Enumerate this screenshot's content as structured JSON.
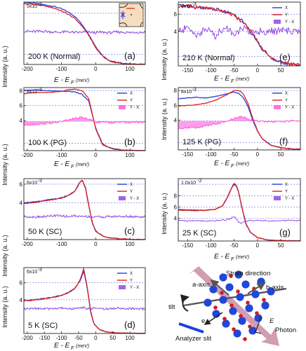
{
  "figure": {
    "ylabel": "Intensity (a. u.)",
    "xlabel_main": "E - E",
    "xlabel_sub": "F",
    "xlabel_unit": "(meV)"
  },
  "colors": {
    "X": "#1f3fe0",
    "Y": "#e01f1f",
    "Y_minus_X_pink": "#ff4fd8",
    "Y_minus_X_purple": "#8a3ee0",
    "ref_line": "#6a6ae0"
  },
  "chart_data": [
    {
      "id": "a",
      "panel_label": "(a)",
      "condition": "200 K (Normal)",
      "type": "line",
      "xlim": [
        -210,
        145
      ],
      "ylim": [
        0,
        5.6
      ],
      "xticks": [
        -200,
        -100,
        0,
        100
      ],
      "yticks": [],
      "multiplier": "5x10",
      "multiplier_exp": "-3",
      "legend": null,
      "inset": true,
      "ref_lines": [
        0.9,
        2.9,
        4.6
      ],
      "diff_fill": false,
      "x": [
        -210,
        -180,
        -150,
        -120,
        -100,
        -80,
        -60,
        -40,
        -20,
        0,
        20,
        40,
        60,
        80,
        100,
        120,
        145
      ],
      "series": [
        {
          "key": "X",
          "values": [
            5.6,
            5.5,
            5.35,
            5.2,
            5.0,
            4.7,
            4.3,
            3.6,
            2.7,
            1.6,
            0.8,
            0.35,
            0.2,
            0.1,
            0.05,
            0.02,
            0.0
          ]
        },
        {
          "key": "Y",
          "values": [
            5.45,
            5.4,
            5.25,
            5.05,
            4.8,
            4.5,
            4.1,
            3.45,
            2.6,
            1.5,
            0.75,
            0.3,
            0.15,
            0.08,
            0.03,
            0.02,
            0.0
          ]
        },
        {
          "key": "Y - X",
          "values": [
            3.0,
            2.95,
            3.0,
            2.9,
            2.9,
            2.95,
            2.85,
            2.9,
            2.9,
            2.85,
            2.9,
            2.85,
            2.9,
            2.9,
            2.85,
            2.9,
            2.9
          ]
        }
      ]
    },
    {
      "id": "b",
      "panel_label": "(b)",
      "condition": "100 K (PG)",
      "type": "line",
      "xlim": [
        -210,
        145
      ],
      "ylim": [
        0,
        8.4
      ],
      "xticks": [
        -200,
        -100,
        0,
        100
      ],
      "yticks": [
        4,
        6,
        8
      ],
      "multiplier": "8x10",
      "multiplier_exp": "-3",
      "legend": [
        "X",
        "Y",
        "Y - X"
      ],
      "legend_colors": [
        "#1f3fe0",
        "#e01f1f",
        "#ff4fd8"
      ],
      "ref_lines": [
        1.0,
        3.9,
        6.0,
        8.0
      ],
      "diff_fill": true,
      "x": [
        -210,
        -180,
        -150,
        -120,
        -100,
        -80,
        -60,
        -40,
        -20,
        0,
        20,
        40,
        60,
        80,
        100,
        120,
        145
      ],
      "series": [
        {
          "key": "X",
          "values": [
            8.0,
            8.1,
            8.0,
            7.95,
            7.9,
            7.9,
            7.8,
            7.5,
            6.6,
            3.0,
            0.9,
            0.4,
            0.2,
            0.1,
            0.05,
            0.0,
            0.0
          ]
        },
        {
          "key": "Y",
          "values": [
            7.6,
            7.7,
            7.75,
            7.8,
            7.9,
            8.1,
            8.2,
            8.0,
            6.9,
            2.9,
            0.8,
            0.35,
            0.15,
            0.08,
            0.03,
            0.0,
            0.0
          ]
        },
        {
          "key": "Y - X",
          "values": [
            3.4,
            3.5,
            3.6,
            3.7,
            3.9,
            4.1,
            4.3,
            4.4,
            4.2,
            3.8,
            3.8,
            3.7,
            3.8,
            3.8,
            3.7,
            3.8,
            3.8
          ]
        }
      ]
    },
    {
      "id": "c",
      "panel_label": "(c)",
      "condition": "50 K (SC)",
      "type": "line",
      "xlim": [
        -210,
        145
      ],
      "ylim": [
        0,
        6.6
      ],
      "xticks": [
        -200,
        -100,
        0,
        100
      ],
      "yticks": [
        4,
        6
      ],
      "multiplier": "6x10",
      "multiplier_exp": "-3",
      "legend": [
        "X",
        "Y",
        "Y - X"
      ],
      "legend_colors": [
        "#1f3fe0",
        "#e01f1f",
        "#8a3ee0"
      ],
      "ref_lines": [
        2.5,
        4.0,
        6.0
      ],
      "diff_fill": false,
      "x": [
        -210,
        -180,
        -150,
        -120,
        -100,
        -80,
        -60,
        -50,
        -40,
        -30,
        -20,
        -10,
        0,
        20,
        40,
        70,
        100,
        145
      ],
      "series": [
        {
          "key": "X",
          "values": [
            4.0,
            4.1,
            4.25,
            4.4,
            4.55,
            4.8,
            5.3,
            6.0,
            6.45,
            5.6,
            3.6,
            1.8,
            0.9,
            0.4,
            0.2,
            0.08,
            0.03,
            0.0
          ]
        },
        {
          "key": "Y",
          "values": [
            3.9,
            4.0,
            4.2,
            4.35,
            4.5,
            4.75,
            5.25,
            5.95,
            6.5,
            5.7,
            3.7,
            1.9,
            0.95,
            0.4,
            0.2,
            0.08,
            0.03,
            0.0
          ]
        },
        {
          "key": "Y - X",
          "values": [
            2.5,
            2.45,
            2.5,
            2.6,
            2.55,
            2.5,
            2.6,
            2.5,
            2.55,
            2.5,
            2.5,
            2.45,
            2.5,
            2.45,
            2.5,
            2.5,
            2.5,
            2.45
          ]
        }
      ]
    },
    {
      "id": "d",
      "panel_label": "(d)",
      "condition": "5 K (SC)",
      "type": "line",
      "xlim": [
        -210,
        145
      ],
      "ylim": [
        0,
        7.8
      ],
      "xticks": [
        -200,
        -150,
        -100,
        -50,
        0,
        50,
        100
      ],
      "yticks": [
        4,
        6
      ],
      "multiplier": "6x10",
      "multiplier_exp": "-3",
      "legend": [
        "X",
        "Y",
        "Y - X"
      ],
      "legend_colors": [
        "#1f3fe0",
        "#e01f1f",
        "#8a3ee0"
      ],
      "ref_lines": [
        3.0,
        4.0,
        6.0
      ],
      "diff_fill": false,
      "x": [
        -210,
        -180,
        -150,
        -120,
        -100,
        -80,
        -60,
        -45,
        -35,
        -25,
        -15,
        -5,
        10,
        30,
        60,
        100,
        145
      ],
      "series": [
        {
          "key": "X",
          "values": [
            3.9,
            4.0,
            4.15,
            4.35,
            4.55,
            4.85,
            5.4,
            6.3,
            7.4,
            5.5,
            2.6,
            1.1,
            0.5,
            0.2,
            0.08,
            0.03,
            0.0
          ]
        },
        {
          "key": "Y",
          "values": [
            3.85,
            3.95,
            4.1,
            4.3,
            4.5,
            4.8,
            5.35,
            6.4,
            7.7,
            5.6,
            2.7,
            1.15,
            0.5,
            0.2,
            0.08,
            0.03,
            0.0
          ]
        },
        {
          "key": "Y - X",
          "values": [
            2.85,
            3.0,
            2.9,
            2.95,
            3.05,
            2.9,
            2.95,
            3.0,
            3.1,
            2.95,
            2.9,
            3.0,
            2.95,
            2.9,
            3.0,
            2.95,
            2.9
          ]
        }
      ]
    },
    {
      "id": "e",
      "panel_label": "(e)",
      "condition": "210 K (Normal)",
      "type": "line",
      "xlim": [
        -170,
        92
      ],
      "ylim": [
        0,
        7.4
      ],
      "xticks": [
        -150,
        -100,
        -50,
        0,
        50
      ],
      "yticks": [
        4,
        6
      ],
      "multiplier": "6x10",
      "multiplier_exp": "-3",
      "legend": [
        "X",
        "Y",
        "Y - X"
      ],
      "legend_colors": [
        "#1f3fe0",
        "#e01f1f",
        "#8a3ee0"
      ],
      "ref_lines": [
        1.1,
        4.0,
        6.0
      ],
      "diff_fill": false,
      "x": [
        -170,
        -150,
        -130,
        -110,
        -90,
        -70,
        -50,
        -30,
        -10,
        0,
        10,
        30,
        50,
        70,
        92
      ],
      "series": [
        {
          "key": "X",
          "values": [
            7.0,
            6.9,
            6.8,
            6.7,
            6.6,
            6.3,
            5.9,
            5.1,
            3.6,
            2.8,
            1.9,
            0.9,
            0.4,
            0.2,
            0.1
          ]
        },
        {
          "key": "Y",
          "values": [
            6.9,
            6.95,
            6.75,
            6.7,
            6.5,
            6.35,
            5.8,
            5.0,
            3.7,
            2.9,
            2.0,
            0.95,
            0.45,
            0.2,
            0.1
          ]
        },
        {
          "key": "Y - X",
          "values": [
            4.0,
            4.4,
            3.6,
            4.3,
            3.5,
            4.5,
            3.8,
            4.3,
            3.9,
            4.0,
            4.0,
            4.0,
            4.1,
            4.0,
            4.0
          ]
        }
      ]
    },
    {
      "id": "f",
      "panel_label": "(f)",
      "condition": "125 K (PG)",
      "type": "line",
      "xlim": [
        -170,
        92
      ],
      "ylim": [
        0,
        8.4
      ],
      "xticks": [
        -150,
        -100,
        -50,
        0,
        50
      ],
      "yticks": [
        4,
        6,
        8
      ],
      "multiplier": "8x10",
      "multiplier_exp": "-3",
      "legend": [
        "X",
        "Y",
        "Y - X"
      ],
      "legend_colors": [
        "#1f3fe0",
        "#e01f1f",
        "#ff4fd8"
      ],
      "ref_lines": [
        1.0,
        3.9,
        6.0,
        8.0
      ],
      "diff_fill": true,
      "x": [
        -170,
        -150,
        -130,
        -110,
        -90,
        -70,
        -50,
        -40,
        -30,
        -20,
        -10,
        0,
        10,
        30,
        50,
        70,
        92
      ],
      "series": [
        {
          "key": "X",
          "values": [
            6.9,
            7.0,
            7.1,
            7.0,
            7.2,
            7.5,
            7.8,
            7.6,
            7.0,
            5.8,
            4.0,
            2.5,
            1.5,
            0.6,
            0.3,
            0.15,
            0.1
          ]
        },
        {
          "key": "Y",
          "values": [
            5.9,
            6.0,
            6.1,
            6.3,
            6.7,
            7.3,
            8.0,
            8.0,
            7.5,
            6.2,
            4.2,
            2.6,
            1.5,
            0.6,
            0.3,
            0.15,
            0.1
          ]
        },
        {
          "key": "Y - X",
          "values": [
            2.9,
            3.0,
            3.0,
            3.3,
            3.5,
            3.8,
            4.2,
            4.5,
            4.4,
            4.2,
            4.0,
            3.9,
            3.8,
            3.8,
            3.8,
            3.9,
            3.9
          ]
        }
      ]
    },
    {
      "id": "g",
      "panel_label": "(g)",
      "condition": "25 K (SC)",
      "type": "line",
      "xlim": [
        -170,
        92
      ],
      "ylim": [
        0,
        11.0
      ],
      "xticks": [
        -150,
        -100,
        -50,
        0,
        50
      ],
      "yticks": [
        4,
        6,
        8
      ],
      "multiplier": "1.0x10",
      "multiplier_exp": "-2",
      "legend": [
        "X",
        "Y",
        "Y - X"
      ],
      "legend_colors": [
        "#1f3fe0",
        "#e01f1f",
        "#8a3ee0"
      ],
      "ref_lines": [
        4.0,
        6.0,
        8.0,
        10.0
      ],
      "diff_fill": false,
      "x": [
        -170,
        -150,
        -130,
        -110,
        -90,
        -75,
        -65,
        -55,
        -50,
        -45,
        -40,
        -35,
        -25,
        -15,
        0,
        20,
        50,
        92
      ],
      "series": [
        {
          "key": "X",
          "values": [
            5.6,
            5.5,
            5.45,
            5.45,
            5.6,
            6.2,
            7.6,
            9.4,
            10.0,
            9.6,
            8.4,
            6.4,
            3.0,
            1.5,
            0.6,
            0.2,
            0.08,
            0.03
          ]
        },
        {
          "key": "Y",
          "values": [
            5.45,
            5.4,
            5.35,
            5.4,
            5.6,
            6.2,
            7.7,
            9.5,
            10.2,
            9.8,
            8.5,
            6.5,
            3.1,
            1.55,
            0.6,
            0.2,
            0.08,
            0.03
          ]
        },
        {
          "key": "Y - X",
          "values": [
            3.6,
            3.55,
            3.6,
            3.55,
            3.6,
            3.65,
            3.8,
            4.1,
            4.3,
            3.9,
            3.3,
            3.2,
            3.6,
            3.6,
            3.6,
            3.55,
            3.6,
            3.6
          ]
        }
      ]
    }
  ],
  "diagram": {
    "strain_label": "Strain direction",
    "a_axis": "a-axis",
    "b_axis": "b-axis",
    "tilt": "tilt",
    "electron": "e",
    "E_field": "E",
    "photon": "Photon",
    "slit": "Analyzer slit"
  }
}
